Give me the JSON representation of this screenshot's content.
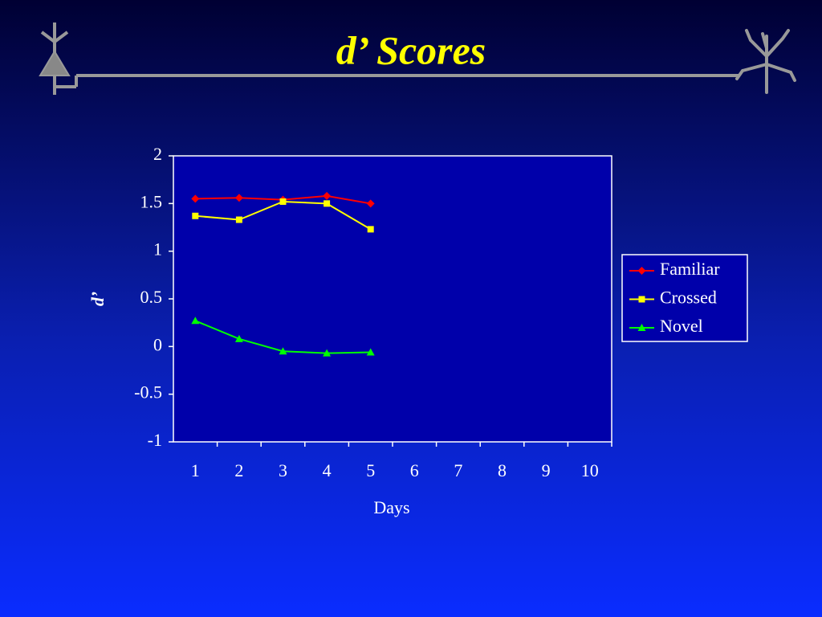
{
  "chart_data": {
    "type": "line",
    "title": "d’ Scores",
    "x_label": "Days",
    "y_label": "d’",
    "categories": [
      "1",
      "2",
      "3",
      "4",
      "5",
      "6",
      "7",
      "8",
      "9",
      "10"
    ],
    "series": [
      {
        "name": "Familiar",
        "color": "#ff0000",
        "marker": "diamond",
        "values": [
          1.55,
          1.56,
          1.54,
          1.58,
          1.5,
          null,
          null,
          null,
          null,
          null
        ]
      },
      {
        "name": "Crossed",
        "color": "#ffff00",
        "marker": "square",
        "values": [
          1.37,
          1.33,
          1.52,
          1.5,
          1.23,
          null,
          null,
          null,
          null,
          null
        ]
      },
      {
        "name": "Novel",
        "color": "#00ff00",
        "marker": "triangle",
        "values": [
          0.27,
          0.08,
          -0.05,
          -0.07,
          -0.06,
          null,
          null,
          null,
          null,
          null
        ]
      }
    ],
    "ylim": [
      -1,
      2
    ],
    "yticks": [
      2,
      1.5,
      1,
      0.5,
      0,
      -0.5,
      -1
    ],
    "legend": "right"
  }
}
